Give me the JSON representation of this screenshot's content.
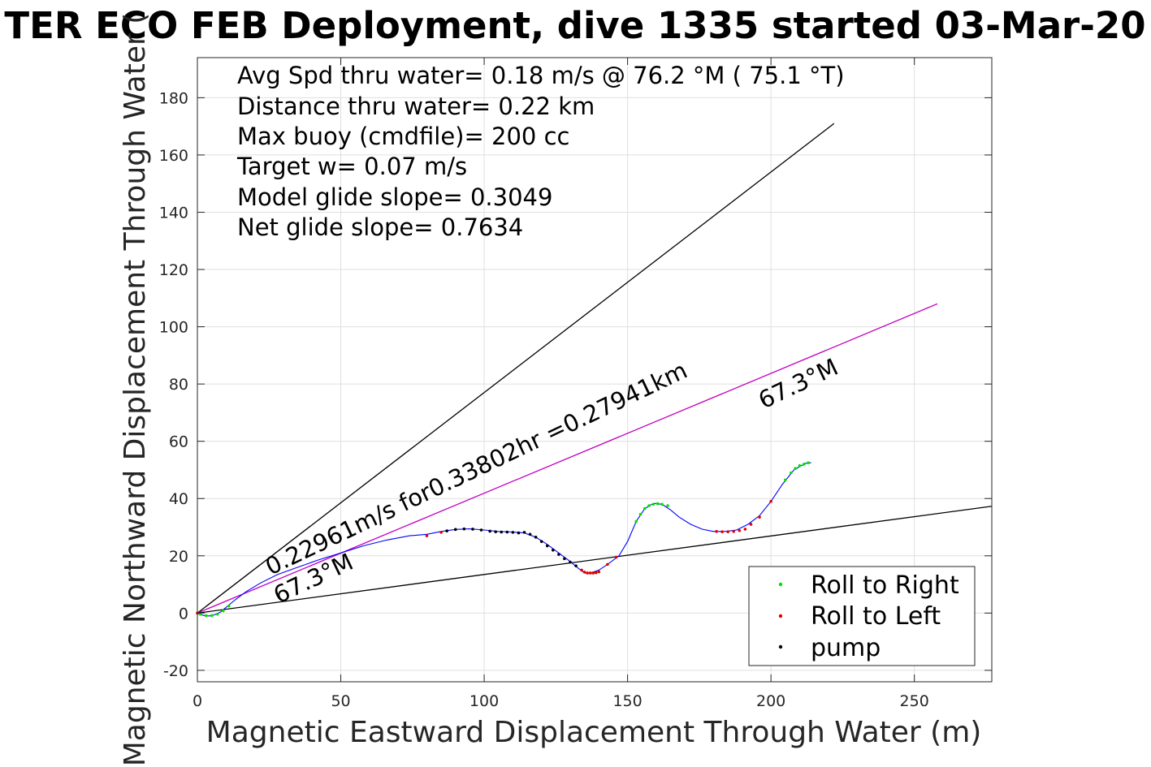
{
  "chart_data": {
    "type": "scatter",
    "title": "TER ECO FEB Deployment, dive 1335 started 03-Mar-20",
    "xlabel": "Magnetic Eastward Displacement Through Water (m)",
    "ylabel": "Magnetic Northward Displacement Through Water (",
    "xlim": [
      0,
      277
    ],
    "ylim": [
      -24,
      194
    ],
    "xticks": [
      0,
      50,
      100,
      150,
      200,
      250
    ],
    "yticks": [
      -20,
      0,
      20,
      40,
      60,
      80,
      100,
      120,
      140,
      160,
      180
    ],
    "grid": true,
    "info_lines": [
      "Avg Spd thru water=  0.18 m/s @  76.2 °M ( 75.1 °T)",
      "Distance thru water=  0.22 km",
      "Max buoy (cmdfile)= 200 cc",
      "Target w= 0.07 m/s",
      "Model glide slope= 0.3049",
      "Net glide slope= 0.7634"
    ],
    "annotations": {
      "speed_line": "0.22961m/s for0.33802hr =0.27941km",
      "heading_upper": "67.3°M",
      "heading_lower": "67.3°M"
    },
    "reference_lines": [
      {
        "name": "steep",
        "color": "#000000",
        "x": [
          0,
          222
        ],
        "y": [
          0,
          171
        ]
      },
      {
        "name": "heading",
        "color": "#c000c0",
        "x": [
          0,
          258
        ],
        "y": [
          0,
          108
        ]
      },
      {
        "name": "shallow",
        "color": "#000000",
        "x": [
          0,
          277
        ],
        "y": [
          0,
          37.3
        ]
      }
    ],
    "track": {
      "color": "#0000ff",
      "x": [
        0,
        2,
        4,
        6,
        8,
        10,
        13,
        17,
        22,
        28,
        35,
        42,
        50,
        58,
        66,
        74,
        80,
        85,
        90,
        95,
        100,
        105,
        110,
        114,
        118,
        122,
        126,
        130,
        133,
        135,
        137,
        140,
        143,
        147,
        150,
        153,
        156,
        159,
        162,
        165,
        168,
        172,
        176,
        180,
        184,
        188,
        192,
        196,
        200,
        204,
        208,
        212,
        214
      ],
      "y": [
        0,
        -0.8,
        -1,
        -0.6,
        0.3,
        2,
        4.5,
        7.5,
        10.5,
        13.5,
        16,
        18.5,
        21,
        23.5,
        25.5,
        27,
        27.5,
        28.5,
        29.2,
        29.4,
        29,
        28.5,
        28.3,
        28,
        26.5,
        24,
        21,
        18,
        15.5,
        14,
        14,
        15,
        17,
        20,
        25,
        32,
        36.5,
        38.3,
        38,
        36,
        33.5,
        31,
        29.3,
        28.5,
        28.5,
        29,
        31,
        34,
        39,
        45,
        50,
        52.3,
        52.5
      ]
    },
    "series": [
      {
        "name": "Roll to Right",
        "color": "#00e000",
        "x": [
          1,
          3,
          5,
          7,
          9,
          11,
          153,
          154.5,
          156,
          157.5,
          159,
          160.5,
          162,
          164,
          205,
          207,
          208.5,
          210,
          211.5,
          213
        ],
        "y": [
          -0.4,
          -0.9,
          -0.9,
          -0.4,
          0.8,
          2.5,
          32,
          34.5,
          36.5,
          37.5,
          38,
          38.2,
          38,
          37.5,
          46.5,
          49,
          50.5,
          51.5,
          52,
          52.5
        ]
      },
      {
        "name": "Roll to Left",
        "color": "#e00000",
        "x": [
          0,
          80,
          85,
          134,
          135,
          136,
          137,
          138,
          139,
          140,
          143,
          146,
          181,
          183,
          185,
          187,
          189,
          191,
          193,
          196,
          200
        ],
        "y": [
          0,
          27,
          28.2,
          15,
          14.3,
          14,
          14,
          14,
          14.1,
          14.4,
          17,
          19.5,
          28.5,
          28.4,
          28.4,
          28.5,
          28.8,
          29.3,
          31,
          33.5,
          39
        ]
      },
      {
        "name": "pump",
        "color": "#000000",
        "x": [
          87,
          90,
          93,
          96,
          99,
          102,
          104,
          106,
          108,
          110,
          112,
          114,
          116,
          118,
          120,
          122,
          124,
          126,
          128,
          130,
          132
        ],
        "y": [
          28.7,
          29.2,
          29.4,
          29.3,
          29,
          28.6,
          28.4,
          28.3,
          28.3,
          28.2,
          28,
          28.2,
          27.5,
          26.5,
          25,
          23.5,
          22,
          20.5,
          19,
          17.8,
          16.5
        ]
      }
    ],
    "legend_position": "bottom-right"
  }
}
